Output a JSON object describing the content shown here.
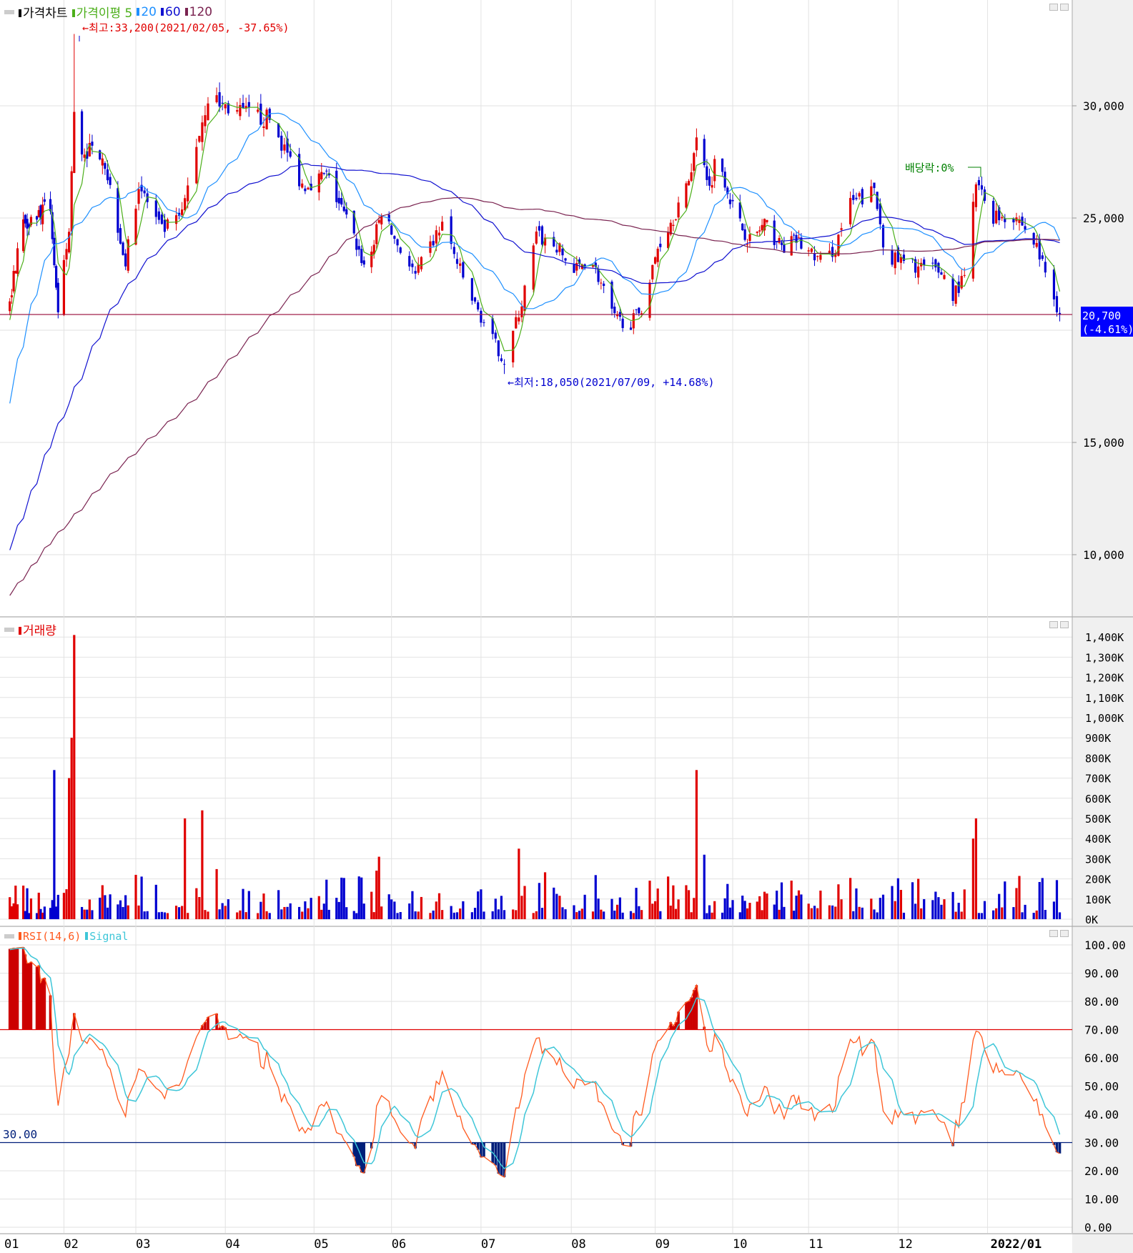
{
  "price_panel": {
    "title": "가격차트",
    "ma_label": "가격이평",
    "ma_periods": [
      "5",
      "20",
      "60",
      "120"
    ],
    "ma_colors": [
      "#4caf1a",
      "#1e90ff",
      "#1010d0",
      "#7a2350"
    ],
    "max_annotation": "←최고:33,200(2021/02/05, -37.65%)",
    "min_annotation": "←최저:18,050(2021/07/09, +14.68%)",
    "dividend_annotation": "배당락:0%",
    "current_price": "20,700",
    "current_change": "(-4.61%)",
    "y_ticks": [
      "30,000",
      "25,000",
      "15,000",
      "10,000"
    ]
  },
  "volume_panel": {
    "title": "거래량",
    "y_ticks": [
      "1,400K",
      "1,300K",
      "1,200K",
      "1,100K",
      "1,000K",
      "900K",
      "800K",
      "700K",
      "600K",
      "500K",
      "400K",
      "300K",
      "200K",
      "100K",
      "0K"
    ]
  },
  "rsi_panel": {
    "title": "RSI(14,6)",
    "signal_label": "Signal",
    "level_label": "30.00",
    "y_ticks": [
      "100.00",
      "90.00",
      "80.00",
      "70.00",
      "60.00",
      "50.00",
      "40.00",
      "30.00",
      "20.00",
      "10.00",
      "0.00"
    ]
  },
  "x_ticks": [
    "01",
    "02",
    "03",
    "04",
    "05",
    "06",
    "07",
    "08",
    "09",
    "10",
    "11",
    "12",
    "2022/01"
  ],
  "colors": {
    "up": "#e00000",
    "down": "#0000d0",
    "rsi": "#ff5a1f",
    "signal": "#3ec6d8",
    "overbought_fill": "#cc0000",
    "oversold_fill": "#001f7a"
  },
  "chart_data": {
    "type": "candlestick",
    "price_range": [
      7500,
      33800
    ],
    "highest": {
      "date": "2021-02-05",
      "price": 33200
    },
    "lowest": {
      "date": "2021-07-09",
      "price": 18050
    },
    "last_close": 20700,
    "close_keypoints": [
      [
        "2021-01-04",
        21200
      ],
      [
        "2021-01-10",
        24750
      ],
      [
        "2021-01-25",
        25500
      ],
      [
        "2021-01-29",
        20500
      ],
      [
        "2021-02-03",
        24400
      ],
      [
        "2021-02-05",
        29500
      ],
      [
        "2021-02-08",
        28000
      ],
      [
        "2021-02-16",
        28000
      ],
      [
        "2021-02-25",
        23000
      ],
      [
        "2021-03-02",
        26500
      ],
      [
        "2021-03-10",
        24400
      ],
      [
        "2021-03-17",
        25100
      ],
      [
        "2021-03-22",
        28300
      ],
      [
        "2021-03-26",
        30400
      ],
      [
        "2021-04-05",
        29700
      ],
      [
        "2021-04-16",
        29400
      ],
      [
        "2021-04-27",
        26500
      ],
      [
        "2021-05-06",
        26900
      ],
      [
        "2021-05-16",
        24400
      ],
      [
        "2021-05-22",
        22600
      ],
      [
        "2021-05-28",
        25300
      ],
      [
        "2021-06-09",
        22400
      ],
      [
        "2021-06-18",
        24750
      ],
      [
        "2021-06-27",
        21600
      ],
      [
        "2021-07-03",
        20100
      ],
      [
        "2021-07-09",
        18600
      ],
      [
        "2021-07-15",
        21200
      ],
      [
        "2021-07-20",
        24200
      ],
      [
        "2021-07-27",
        23700
      ],
      [
        "2021-08-02",
        22600
      ],
      [
        "2021-08-08",
        23300
      ],
      [
        "2021-08-17",
        20500
      ],
      [
        "2021-08-23",
        20300
      ],
      [
        "2021-08-28",
        21200
      ],
      [
        "2021-09-02",
        23700
      ],
      [
        "2021-09-13",
        26200
      ],
      [
        "2021-09-18",
        29000
      ],
      [
        "2021-09-22",
        26300
      ],
      [
        "2021-09-25",
        28000
      ],
      [
        "2021-10-02",
        25100
      ],
      [
        "2021-10-08",
        24000
      ],
      [
        "2021-10-14",
        24700
      ],
      [
        "2021-10-21",
        23700
      ],
      [
        "2021-10-27",
        24000
      ],
      [
        "2021-11-06",
        23000
      ],
      [
        "2021-11-10",
        23700
      ],
      [
        "2021-11-14",
        25500
      ],
      [
        "2021-11-23",
        26200
      ],
      [
        "2021-11-27",
        23300
      ],
      [
        "2021-12-03",
        23000
      ],
      [
        "2021-12-16",
        22600
      ],
      [
        "2021-12-20",
        21600
      ],
      [
        "2021-12-24",
        22300
      ],
      [
        "2021-12-28",
        26500
      ],
      [
        "2022-01-03",
        25100
      ],
      [
        "2022-01-11",
        25100
      ],
      [
        "2022-01-18",
        23700
      ],
      [
        "2022-01-26",
        20700
      ]
    ],
    "volume_spikes_k": [
      [
        "2021-01-27",
        740
      ],
      [
        "2021-02-03",
        700
      ],
      [
        "2021-02-04",
        900
      ],
      [
        "2021-02-05",
        1410
      ],
      [
        "2021-03-18",
        500
      ],
      [
        "2021-03-24",
        540
      ],
      [
        "2021-05-27",
        310
      ],
      [
        "2021-07-14",
        350
      ],
      [
        "2021-09-17",
        740
      ],
      [
        "2021-09-20",
        320
      ],
      [
        "2021-12-27",
        400
      ],
      [
        "2021-12-28",
        500
      ]
    ],
    "volume_baseline_k": 100,
    "volume_range_k": [
      0,
      1400
    ],
    "rsi_period": 14,
    "signal_period": 6,
    "rsi_levels": [
      70,
      30
    ],
    "rsi_range": [
      0,
      100
    ],
    "grid": true
  }
}
